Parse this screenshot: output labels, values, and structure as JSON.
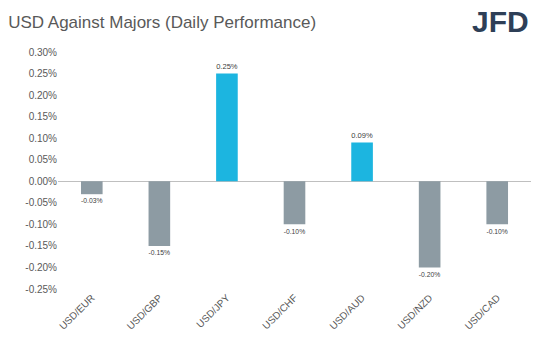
{
  "chart_data": {
    "type": "bar",
    "title": "USD Against Majors (Daily Performance)",
    "annotations": [
      "JFD"
    ],
    "categories": [
      "USD/EUR",
      "USD/GBP",
      "USD/JPY",
      "USD/CHF",
      "USD/AUD",
      "USD/NZD",
      "USD/CAD"
    ],
    "values": [
      -0.03,
      -0.15,
      0.25,
      -0.1,
      0.09,
      -0.2,
      -0.1
    ],
    "value_labels": [
      "-0.03%",
      "-0.15%",
      "0.25%",
      "-0.10%",
      "0.09%",
      "-0.20%",
      "-0.10%"
    ],
    "colors": [
      "#8d9ba3",
      "#8d9ba3",
      "#1cb5e0",
      "#8d9ba3",
      "#1cb5e0",
      "#8d9ba3",
      "#8d9ba3"
    ],
    "ylim": [
      -0.25,
      0.3
    ],
    "yticks": [
      {
        "value": -0.25,
        "label": "-0.25%"
      },
      {
        "value": -0.2,
        "label": "-0.20%"
      },
      {
        "value": -0.15,
        "label": "-0.15%"
      },
      {
        "value": -0.1,
        "label": "-0.10%"
      },
      {
        "value": -0.05,
        "label": "-0.05%"
      },
      {
        "value": 0.0,
        "label": "0.00%"
      },
      {
        "value": 0.05,
        "label": "0.05%"
      },
      {
        "value": 0.1,
        "label": "0.10%"
      },
      {
        "value": 0.15,
        "label": "0.15%"
      },
      {
        "value": 0.2,
        "label": "0.20%"
      },
      {
        "value": 0.25,
        "label": "0.25%"
      },
      {
        "value": 0.3,
        "label": "0.30%"
      }
    ],
    "grid": false,
    "data_labels": true
  }
}
